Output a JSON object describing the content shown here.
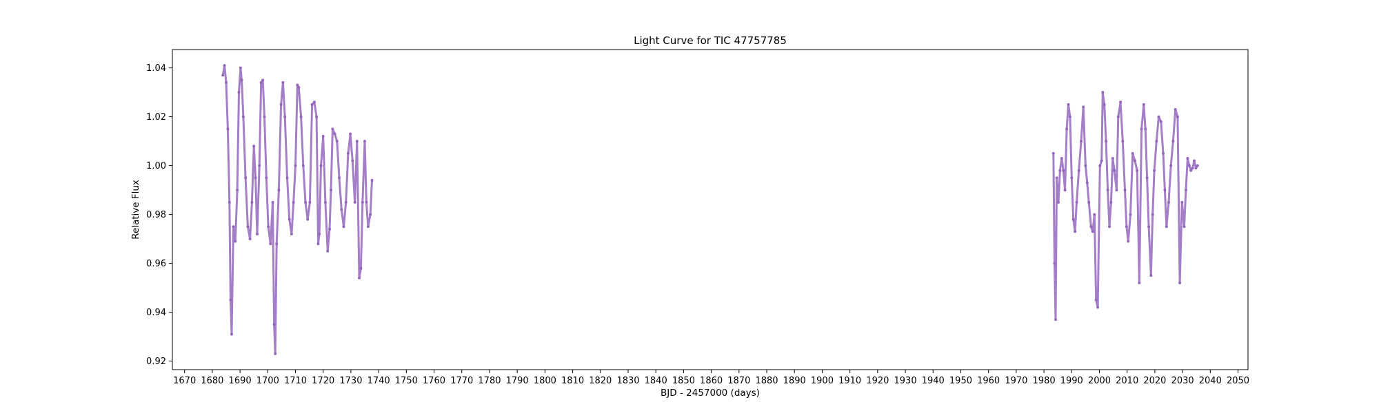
{
  "chart_data": {
    "type": "scatter",
    "title": "Light Curve for TIC 47757785",
    "xlabel": "BJD - 2457000 (days)",
    "ylabel": "Relative Flux",
    "xlim": [
      1665.6,
      2053.6
    ],
    "ylim": [
      0.9165,
      1.0475
    ],
    "x_ticks": [
      1670,
      1680,
      1690,
      1700,
      1710,
      1720,
      1730,
      1740,
      1750,
      1760,
      1770,
      1780,
      1790,
      1800,
      1810,
      1820,
      1830,
      1840,
      1850,
      1860,
      1870,
      1880,
      1890,
      1900,
      1910,
      1920,
      1930,
      1940,
      1950,
      1960,
      1970,
      1980,
      1990,
      2000,
      2010,
      2020,
      2030,
      2040,
      2050
    ],
    "y_ticks": [
      0.92,
      0.94,
      0.96,
      0.98,
      1.0,
      1.02,
      1.04
    ],
    "y_tick_labels": [
      "0.92",
      "0.94",
      "0.96",
      "0.98",
      "1.00",
      "1.02",
      "1.04"
    ],
    "grid": false,
    "marker_color": "#9467bd",
    "series": [
      {
        "x": [
          1683.8,
          1684.4,
          1685.0,
          1685.6,
          1686.2,
          1686.6,
          1687.0,
          1687.6,
          1688.3,
          1689.0,
          1689.6,
          1690.2,
          1690.6,
          1691.2,
          1692.0,
          1692.8,
          1693.6,
          1694.3,
          1695.0,
          1695.6,
          1696.2,
          1697.0,
          1697.6,
          1698.2,
          1698.8,
          1699.5,
          1700.2,
          1701.0,
          1701.8,
          1702.3,
          1702.7,
          1703.2,
          1704.0,
          1704.8,
          1705.5,
          1706.2,
          1707.0,
          1707.8,
          1708.6,
          1709.3,
          1710.0,
          1710.7,
          1711.2,
          1712.0,
          1712.8,
          1713.6,
          1714.4,
          1715.2,
          1716.0,
          1716.8,
          1717.6,
          1718.2,
          1718.6,
          1719.2,
          1720.0,
          1720.8,
          1721.6,
          1722.3,
          1722.8,
          1723.4,
          1724.2,
          1725.0,
          1725.8,
          1726.6,
          1727.4,
          1728.2,
          1729.0,
          1729.8,
          1730.6,
          1731.4,
          1732.2,
          1733.0,
          1733.6,
          1734.2,
          1735.0,
          1735.6,
          1736.2,
          1737.0,
          1737.6
        ],
        "y": [
          1.037,
          1.041,
          1.034,
          1.015,
          0.985,
          0.945,
          0.931,
          0.975,
          0.969,
          0.99,
          1.03,
          1.04,
          1.035,
          1.02,
          0.995,
          0.975,
          0.97,
          0.985,
          1.008,
          0.995,
          0.972,
          1.0,
          1.034,
          1.035,
          1.02,
          0.995,
          0.975,
          0.968,
          0.985,
          0.935,
          0.923,
          0.968,
          0.99,
          1.025,
          1.034,
          1.02,
          0.995,
          0.978,
          0.972,
          0.985,
          1.0,
          1.033,
          1.032,
          1.02,
          1.0,
          0.985,
          0.978,
          0.985,
          1.025,
          1.026,
          1.02,
          0.968,
          0.972,
          1.0,
          1.012,
          0.985,
          0.965,
          0.974,
          0.99,
          1.015,
          1.013,
          1.01,
          0.995,
          0.982,
          0.975,
          0.985,
          1.005,
          1.013,
          1.002,
          0.985,
          1.01,
          0.954,
          0.958,
          0.985,
          1.01,
          0.985,
          0.975,
          0.98,
          0.994
        ]
      },
      {
        "x": [
          1983.4,
          1983.8,
          1984.2,
          1984.6,
          1985.2,
          1985.8,
          1986.4,
          1987.0,
          1987.6,
          1988.2,
          1988.8,
          1989.4,
          1990.0,
          1990.6,
          1991.2,
          1991.8,
          1992.6,
          1993.4,
          1994.2,
          1995.0,
          1995.6,
          1996.2,
          1997.0,
          1997.6,
          1998.2,
          1998.8,
          1999.4,
          2000.2,
          2000.8,
          2001.2,
          2001.8,
          2002.4,
          2003.0,
          2003.6,
          2004.2,
          2004.8,
          2005.4,
          2006.2,
          2006.8,
          2007.6,
          2008.4,
          2009.2,
          2009.8,
          2010.4,
          2011.2,
          2012.0,
          2012.8,
          2013.6,
          2014.4,
          2015.2,
          2016.0,
          2016.6,
          2017.2,
          2017.8,
          2018.6,
          2019.2,
          2019.8,
          2020.6,
          2021.4,
          2022.2,
          2023.0,
          2023.6,
          2024.2,
          2025.0,
          2025.8,
          2026.6,
          2027.4,
          2028.2,
          2029.0,
          2029.8,
          2030.6,
          2031.2,
          2031.8,
          2032.4,
          2033.0,
          2033.6,
          2034.2,
          2034.8,
          2035.4
        ],
        "y": [
          1.005,
          0.96,
          0.937,
          0.995,
          0.985,
          0.998,
          1.003,
          0.998,
          0.99,
          1.015,
          1.025,
          1.02,
          0.995,
          0.978,
          0.973,
          0.985,
          0.998,
          1.01,
          1.024,
          1.0,
          0.993,
          0.985,
          0.975,
          0.973,
          0.98,
          0.945,
          0.942,
          1.0,
          1.002,
          1.03,
          1.025,
          1.01,
          0.99,
          0.975,
          0.985,
          1.003,
          0.998,
          0.99,
          1.02,
          1.026,
          1.01,
          0.99,
          0.975,
          0.969,
          0.98,
          1.005,
          1.002,
          0.998,
          0.952,
          1.015,
          1.025,
          1.015,
          0.995,
          0.975,
          0.955,
          0.98,
          0.998,
          1.01,
          1.02,
          1.018,
          1.005,
          0.99,
          0.975,
          0.985,
          1.0,
          1.01,
          1.023,
          1.02,
          0.952,
          0.985,
          0.975,
          0.99,
          1.003,
          1.0,
          0.998,
          0.999,
          1.002,
          0.999,
          1.0
        ]
      }
    ]
  }
}
